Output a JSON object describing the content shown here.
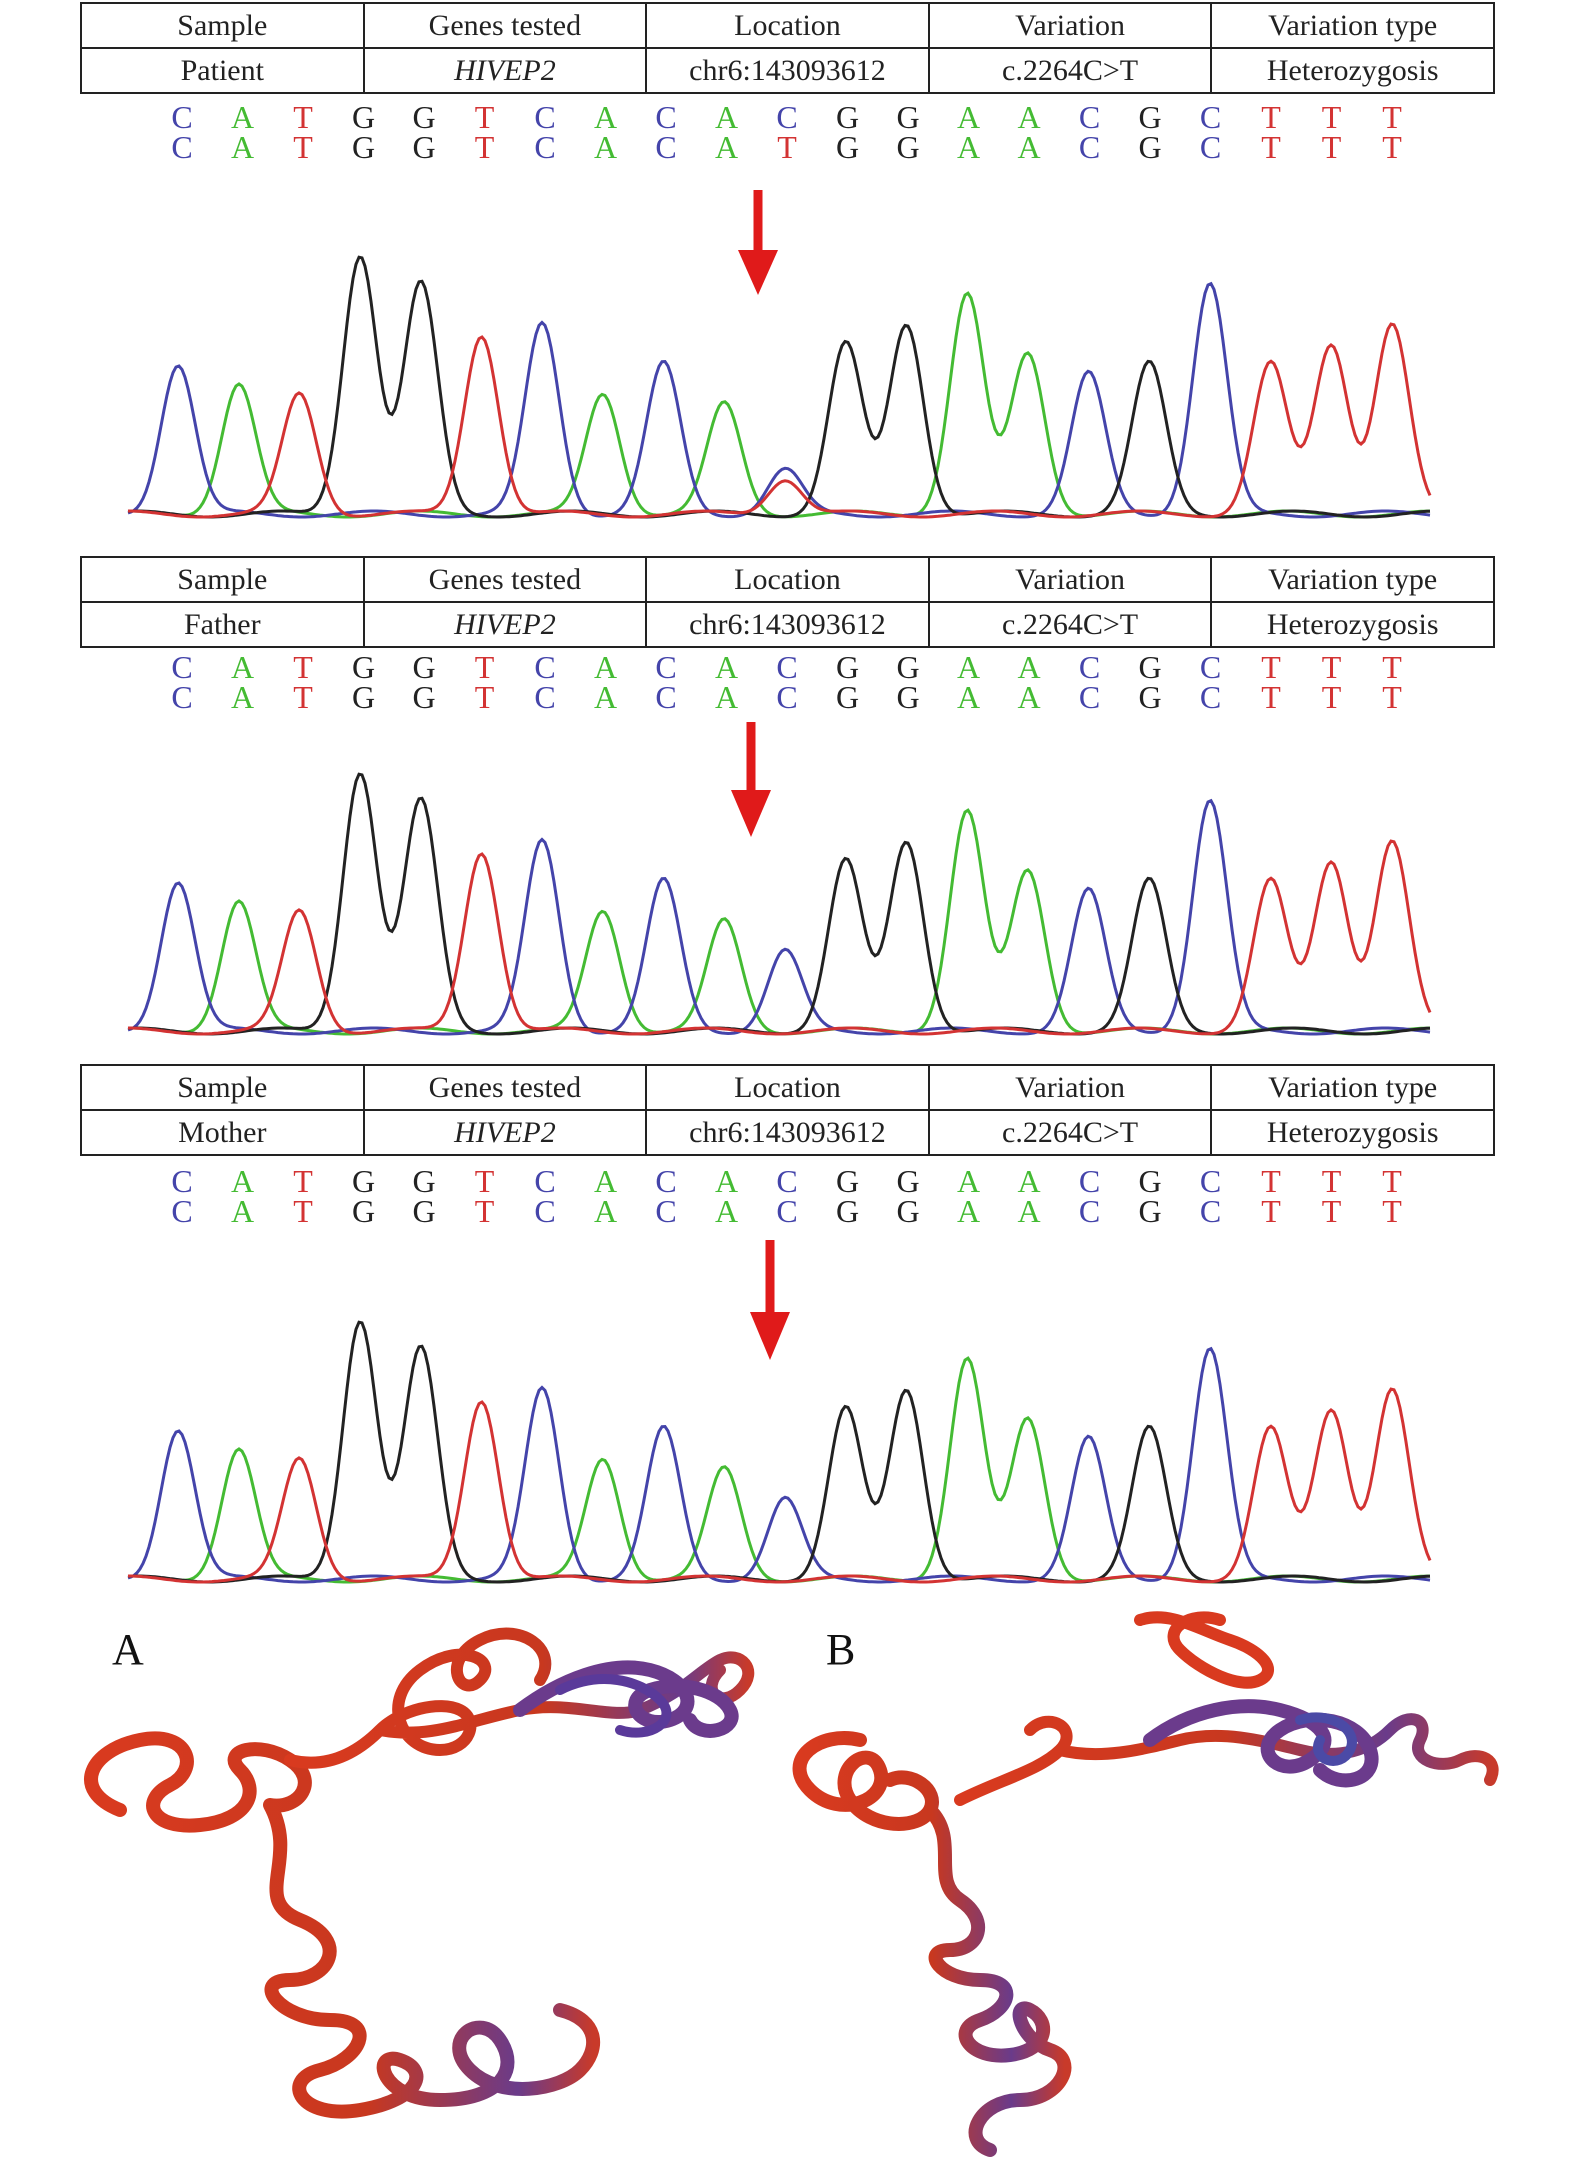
{
  "colors": {
    "A": "#44bb33",
    "C": "#4444aa",
    "G": "#222222",
    "T": "#d33333",
    "arrow": "#e01a1a"
  },
  "table_header": [
    "Sample",
    "Genes tested",
    "Location",
    "Variation",
    "Variation type"
  ],
  "samples": [
    {
      "row": [
        "Patient",
        "HIVEP2",
        "chr6:143093612",
        "c.2264C>T",
        "Heterozygosis"
      ],
      "seq1": [
        "C",
        "A",
        "T",
        "G",
        "G",
        "T",
        "C",
        "A",
        "C",
        "A",
        "C",
        "G",
        "G",
        "A",
        "A",
        "C",
        "G",
        "C",
        "T",
        "T",
        "T"
      ],
      "seq2": [
        "C",
        "A",
        "T",
        "G",
        "G",
        "T",
        "C",
        "A",
        "C",
        "A",
        "T",
        "G",
        "G",
        "A",
        "A",
        "C",
        "G",
        "C",
        "T",
        "T",
        "T"
      ]
    },
    {
      "row": [
        "Father",
        "HIVEP2",
        "chr6:143093612",
        "c.2264C>T",
        "Heterozygosis"
      ],
      "seq1": [
        "C",
        "A",
        "T",
        "G",
        "G",
        "T",
        "C",
        "A",
        "C",
        "A",
        "C",
        "G",
        "G",
        "A",
        "A",
        "C",
        "G",
        "C",
        "T",
        "T",
        "T"
      ],
      "seq2": [
        "C",
        "A",
        "T",
        "G",
        "G",
        "T",
        "C",
        "A",
        "C",
        "A",
        "C",
        "G",
        "G",
        "A",
        "A",
        "C",
        "G",
        "C",
        "T",
        "T",
        "T"
      ]
    },
    {
      "row": [
        "Mother",
        "HIVEP2",
        "chr6:143093612",
        "c.2264C>T",
        "Heterozygosis"
      ],
      "seq1": [
        "C",
        "A",
        "T",
        "G",
        "G",
        "T",
        "C",
        "A",
        "C",
        "A",
        "C",
        "G",
        "G",
        "A",
        "A",
        "C",
        "G",
        "C",
        "T",
        "T",
        "T"
      ],
      "seq2": [
        "C",
        "A",
        "T",
        "G",
        "G",
        "T",
        "C",
        "A",
        "C",
        "A",
        "C",
        "G",
        "G",
        "A",
        "A",
        "C",
        "G",
        "C",
        "T",
        "T",
        "T"
      ]
    }
  ],
  "structure_labels": {
    "a": "A",
    "b": "B"
  }
}
